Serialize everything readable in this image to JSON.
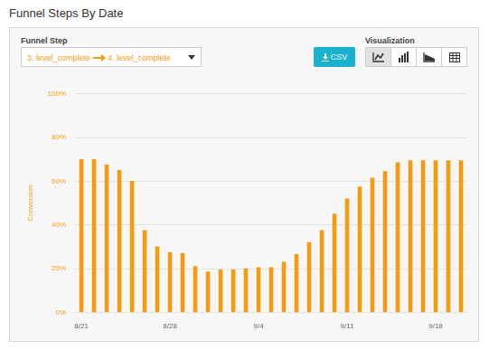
{
  "header": {
    "title": "Funnel Steps By Date"
  },
  "controls": {
    "funnel_step_label": "Funnel Step",
    "funnel_step_from": "3. level_complete",
    "funnel_step_to": "4. level_complete",
    "csv_button": "CSV",
    "visualization_label": "Visualization"
  },
  "chart_data": {
    "type": "bar",
    "y_label": "Conversion",
    "color": "#f39c12",
    "grid": true,
    "categories": [
      "8/21",
      null,
      null,
      null,
      null,
      null,
      null,
      "8/28",
      null,
      null,
      null,
      null,
      null,
      null,
      "9/4",
      null,
      null,
      null,
      null,
      null,
      null,
      "9/11",
      null,
      null,
      null,
      null,
      null,
      null,
      "9/18",
      null,
      null
    ],
    "values": [
      70,
      70,
      67.5,
      65,
      60,
      37.5,
      30,
      27.5,
      27,
      21,
      18.5,
      19.5,
      19.5,
      20,
      20.5,
      20.5,
      23,
      26.5,
      32,
      37.5,
      45,
      52,
      57.5,
      61.5,
      64.5,
      68.5,
      69.5,
      69.5,
      69.5,
      69.5,
      69.5
    ],
    "ylim": [
      0,
      100
    ],
    "yticks": [
      {
        "value": 0,
        "label": "0%"
      },
      {
        "value": 20,
        "label": "20%"
      },
      {
        "value": 40,
        "label": "40%"
      },
      {
        "value": 60,
        "label": "60%"
      },
      {
        "value": 80,
        "label": "80%"
      },
      {
        "value": 100,
        "label": "100%"
      }
    ]
  }
}
